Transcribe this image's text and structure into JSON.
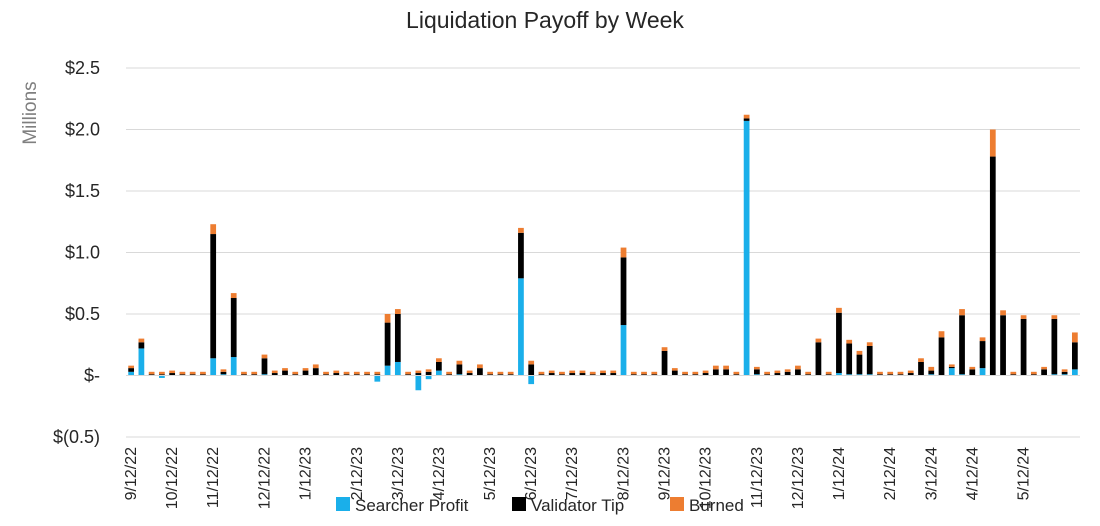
{
  "chart_data": {
    "type": "bar",
    "stacked": true,
    "title": "Liquidation Payoff by Week",
    "unit_label": "Millions",
    "ylim": [
      -0.5,
      2.5
    ],
    "yticks": [
      {
        "value": 2.5,
        "label": "$2.5"
      },
      {
        "value": 2.0,
        "label": "$2.0"
      },
      {
        "value": 1.5,
        "label": "$1.5"
      },
      {
        "value": 1.0,
        "label": "$1.0"
      },
      {
        "value": 0.5,
        "label": "$0.5"
      },
      {
        "value": 0.0,
        "label": "$-"
      },
      {
        "value": -0.5,
        "label": "$(0.5)"
      }
    ],
    "xticks": [
      {
        "index": 0,
        "label": "9/12/22"
      },
      {
        "index": 4,
        "label": "10/12/22"
      },
      {
        "index": 8,
        "label": "11/12/22"
      },
      {
        "index": 13,
        "label": "12/12/22"
      },
      {
        "index": 17,
        "label": "1/12/23"
      },
      {
        "index": 22,
        "label": "2/12/23"
      },
      {
        "index": 26,
        "label": "3/12/23"
      },
      {
        "index": 30,
        "label": "4/12/23"
      },
      {
        "index": 35,
        "label": "5/12/23"
      },
      {
        "index": 39,
        "label": "6/12/23"
      },
      {
        "index": 43,
        "label": "7/12/23"
      },
      {
        "index": 48,
        "label": "8/12/23"
      },
      {
        "index": 52,
        "label": "9/12/23"
      },
      {
        "index": 56,
        "label": "10/12/23"
      },
      {
        "index": 61,
        "label": "11/12/23"
      },
      {
        "index": 65,
        "label": "12/12/23"
      },
      {
        "index": 69,
        "label": "1/12/24"
      },
      {
        "index": 74,
        "label": "2/12/24"
      },
      {
        "index": 78,
        "label": "3/12/24"
      },
      {
        "index": 82,
        "label": "4/12/24"
      },
      {
        "index": 87,
        "label": "5/12/24"
      }
    ],
    "legend_position": "bottom",
    "gridlines": true,
    "series": [
      {
        "name": "Searcher Profit",
        "color": "#1AAFEA",
        "values": [
          0.03,
          0.22,
          0,
          -0.02,
          0,
          0,
          0,
          0,
          0.14,
          0.01,
          0.15,
          0,
          0,
          0.01,
          0,
          0,
          0,
          0,
          0,
          0,
          0,
          0,
          0,
          0,
          -0.05,
          0.08,
          0.11,
          0,
          -0.12,
          -0.03,
          0.04,
          0,
          0.01,
          0,
          0,
          0,
          0,
          0,
          0.79,
          -0.07,
          0,
          0,
          0,
          0,
          0,
          0,
          0,
          0,
          0.41,
          0,
          0,
          0,
          0,
          0,
          0,
          0,
          0,
          0,
          0,
          0,
          2.07,
          0.01,
          0,
          0,
          0,
          0,
          0,
          0,
          0,
          0.02,
          0.01,
          0.01,
          0.01,
          0,
          0,
          0,
          0,
          0,
          0.01,
          0,
          0.06,
          0.01,
          0,
          0.06,
          0,
          0,
          0,
          0,
          0,
          0,
          0.01,
          0.01,
          0.05
        ]
      },
      {
        "name": "Validator Tip",
        "color": "#000000",
        "values": [
          0.03,
          0.05,
          0.01,
          0.01,
          0.02,
          0.01,
          0.01,
          0.01,
          1.01,
          0.02,
          0.48,
          0.01,
          0.01,
          0.13,
          0.02,
          0.04,
          0.01,
          0.04,
          0.06,
          0.01,
          0.02,
          0.01,
          0.01,
          0.01,
          0.01,
          0.35,
          0.39,
          0.01,
          0.02,
          0.03,
          0.07,
          0.01,
          0.08,
          0.02,
          0.06,
          0.01,
          0.01,
          0.01,
          0.37,
          0.09,
          0.01,
          0.02,
          0.01,
          0.02,
          0.02,
          0.01,
          0.02,
          0.02,
          0.55,
          0.01,
          0.01,
          0.01,
          0.2,
          0.04,
          0.01,
          0.01,
          0.02,
          0.05,
          0.05,
          0.01,
          0.02,
          0.04,
          0.01,
          0.02,
          0.03,
          0.05,
          0.01,
          0.27,
          0.01,
          0.49,
          0.25,
          0.16,
          0.23,
          0.01,
          0.01,
          0.01,
          0.02,
          0.11,
          0.03,
          0.31,
          0.01,
          0.48,
          0.05,
          0.22,
          1.78,
          0.49,
          0.01,
          0.46,
          0.01,
          0.05,
          0.45,
          0.02,
          0.22
        ]
      },
      {
        "name": "Burned",
        "color": "#ED7D31",
        "values": [
          0.02,
          0.03,
          0.02,
          0.02,
          0.02,
          0.02,
          0.02,
          0.02,
          0.08,
          0.02,
          0.04,
          0.02,
          0.02,
          0.03,
          0.02,
          0.02,
          0.02,
          0.02,
          0.03,
          0.02,
          0.02,
          0.02,
          0.02,
          0.02,
          0.02,
          0.07,
          0.04,
          0.02,
          0.02,
          0.02,
          0.03,
          0.02,
          0.03,
          0.02,
          0.03,
          0.02,
          0.02,
          0.02,
          0.04,
          0.03,
          0.02,
          0.02,
          0.02,
          0.02,
          0.02,
          0.02,
          0.02,
          0.02,
          0.08,
          0.02,
          0.02,
          0.02,
          0.03,
          0.02,
          0.02,
          0.02,
          0.02,
          0.03,
          0.03,
          0.02,
          0.03,
          0.02,
          0.02,
          0.02,
          0.02,
          0.03,
          0.02,
          0.03,
          0.02,
          0.04,
          0.03,
          0.03,
          0.03,
          0.02,
          0.02,
          0.02,
          0.02,
          0.03,
          0.03,
          0.05,
          0.02,
          0.05,
          0.02,
          0.03,
          0.22,
          0.04,
          0.02,
          0.03,
          0.02,
          0.02,
          0.03,
          0.02,
          0.08
        ]
      }
    ]
  }
}
